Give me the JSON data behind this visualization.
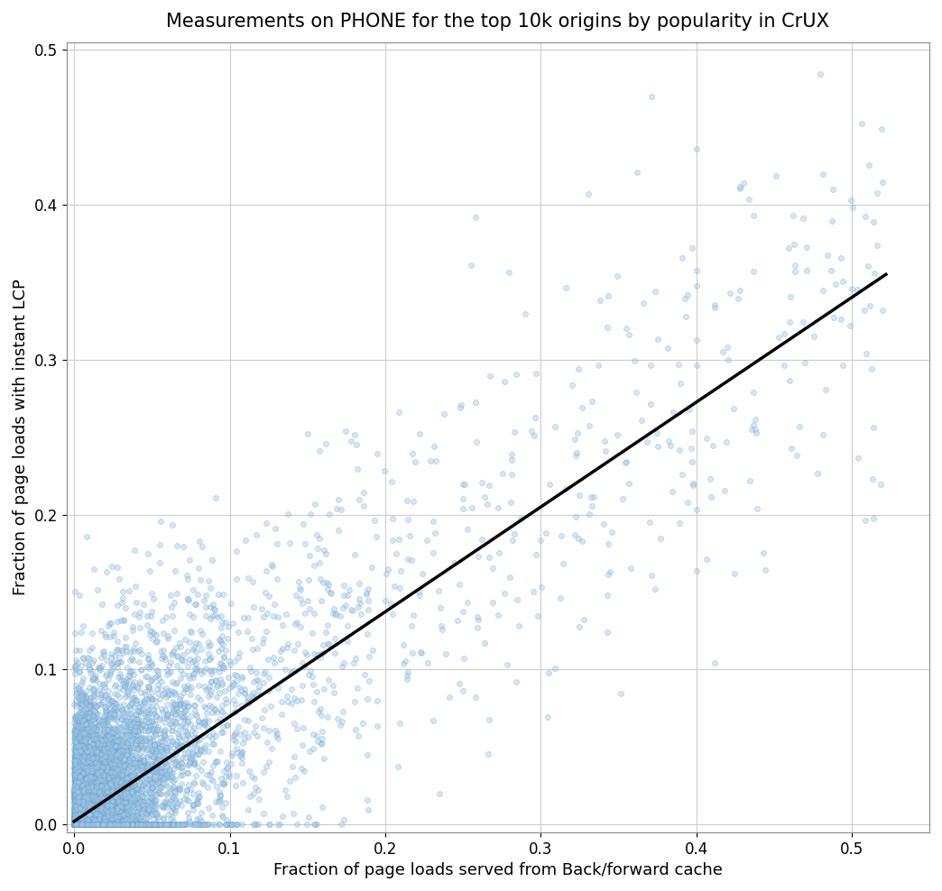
{
  "title": "Measurements on PHONE for the top 10k origins by popularity in CrUX",
  "xlabel": "Fraction of page loads served from Back/forward cache",
  "ylabel": "Fraction of page loads with instant LCP",
  "xlim": [
    -0.005,
    0.55
  ],
  "ylim": [
    -0.005,
    0.505
  ],
  "xticks": [
    0.0,
    0.1,
    0.2,
    0.3,
    0.4,
    0.5
  ],
  "yticks": [
    0.0,
    0.1,
    0.2,
    0.3,
    0.4,
    0.5
  ],
  "scatter_facecolor": "#a8c8e8",
  "scatter_edgecolor": "#5b9dc9",
  "scatter_alpha": 0.45,
  "scatter_size": 18,
  "scatter_linewidth": 0.5,
  "line_color": "black",
  "line_width": 2.5,
  "line_x0": 0.0,
  "line_y0": 0.002,
  "line_x1": 0.522,
  "line_y1": 0.355,
  "seed": 42,
  "n_dense": 6000,
  "n_mid": 2500,
  "n_sparse": 1000,
  "n_very_sparse": 300
}
